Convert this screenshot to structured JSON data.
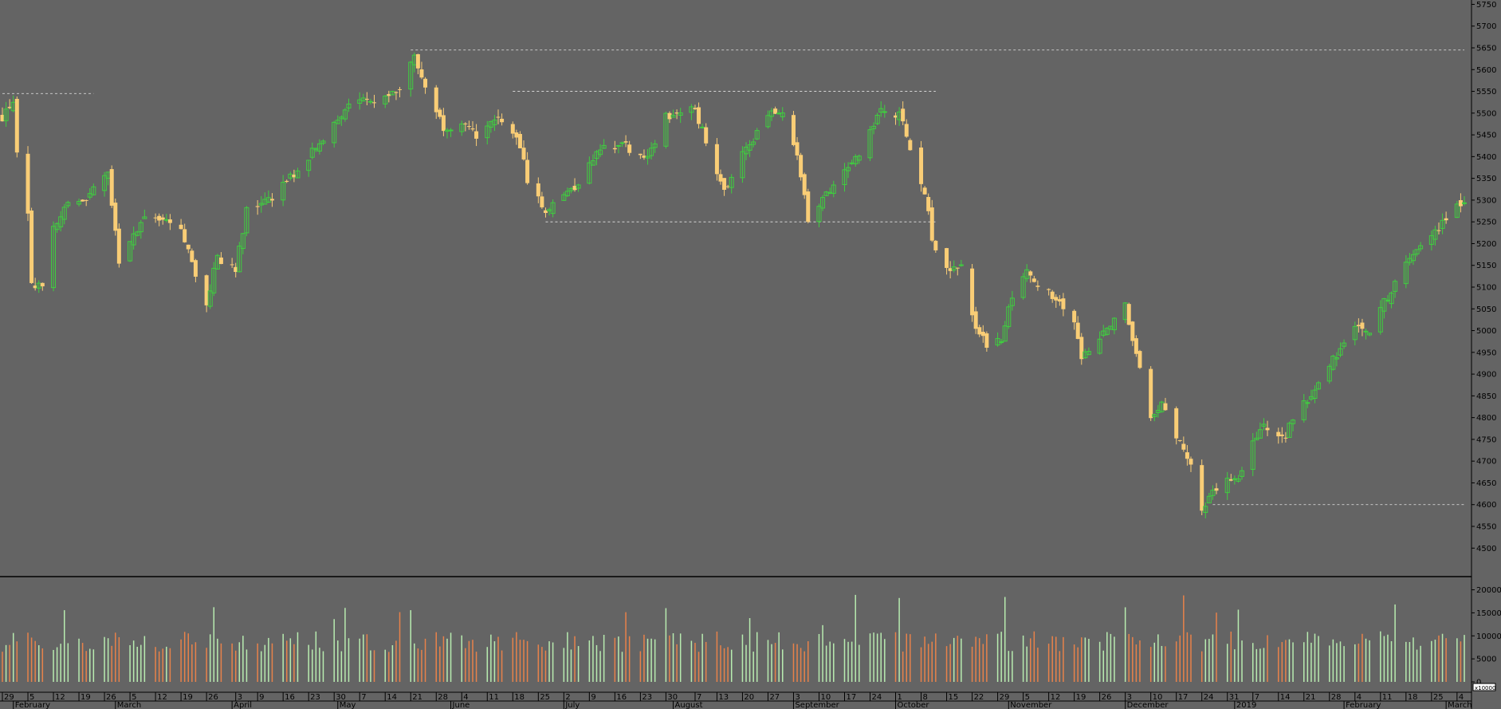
{
  "chart_data": {
    "type": "candlestick",
    "title": "",
    "xlabel": "",
    "ylabel": "",
    "price_ylim": [
      4440,
      5760
    ],
    "price_ticks": [
      4500,
      4550,
      4600,
      4650,
      4700,
      4750,
      4800,
      4850,
      4900,
      4950,
      5000,
      5050,
      5100,
      5150,
      5200,
      5250,
      5300,
      5350,
      5400,
      5450,
      5500,
      5550,
      5600,
      5650,
      5700,
      5750
    ],
    "volume_ylim": [
      0,
      22000
    ],
    "volume_ticks": [
      0,
      5000,
      10000,
      15000,
      20000
    ],
    "volume_corner_label": "x10000",
    "colors": {
      "up": "#3fcf3f",
      "down": "#f9cd76",
      "vol_up": "#b8ecb0",
      "vol_down": "#e8824a",
      "background": "#646464",
      "resistance": "#e6e6e6"
    },
    "month_labels": [
      {
        "label": "February",
        "date": "2018-02-01"
      },
      {
        "label": "March",
        "date": "2018-03-01"
      },
      {
        "label": "April",
        "date": "2018-04-02"
      },
      {
        "label": "May",
        "date": "2018-05-01"
      },
      {
        "label": "June",
        "date": "2018-06-01"
      },
      {
        "label": "July",
        "date": "2018-07-02"
      },
      {
        "label": "August",
        "date": "2018-08-01"
      },
      {
        "label": "September",
        "date": "2018-09-03"
      },
      {
        "label": "October",
        "date": "2018-10-01"
      },
      {
        "label": "November",
        "date": "2018-11-01"
      },
      {
        "label": "December",
        "date": "2018-12-03"
      },
      {
        "label": "2019",
        "date": "2019-01-02"
      },
      {
        "label": "February",
        "date": "2019-02-01"
      },
      {
        "label": "March",
        "date": "2019-03-01"
      }
    ],
    "day_labels": [
      {
        "label": "29",
        "date": "2018-01-29"
      },
      {
        "label": "5",
        "date": "2018-02-05"
      },
      {
        "label": "12",
        "date": "2018-02-12"
      },
      {
        "label": "19",
        "date": "2018-02-19"
      },
      {
        "label": "26",
        "date": "2018-02-26"
      },
      {
        "label": "5",
        "date": "2018-03-05"
      },
      {
        "label": "12",
        "date": "2018-03-12"
      },
      {
        "label": "19",
        "date": "2018-03-19"
      },
      {
        "label": "26",
        "date": "2018-03-26"
      },
      {
        "label": "3",
        "date": "2018-04-03"
      },
      {
        "label": "9",
        "date": "2018-04-09"
      },
      {
        "label": "16",
        "date": "2018-04-16"
      },
      {
        "label": "23",
        "date": "2018-04-23"
      },
      {
        "label": "30",
        "date": "2018-04-30"
      },
      {
        "label": "7",
        "date": "2018-05-07"
      },
      {
        "label": "14",
        "date": "2018-05-14"
      },
      {
        "label": "21",
        "date": "2018-05-21"
      },
      {
        "label": "28",
        "date": "2018-05-28"
      },
      {
        "label": "4",
        "date": "2018-06-04"
      },
      {
        "label": "11",
        "date": "2018-06-11"
      },
      {
        "label": "18",
        "date": "2018-06-18"
      },
      {
        "label": "25",
        "date": "2018-06-25"
      },
      {
        "label": "2",
        "date": "2018-07-02"
      },
      {
        "label": "9",
        "date": "2018-07-09"
      },
      {
        "label": "16",
        "date": "2018-07-16"
      },
      {
        "label": "23",
        "date": "2018-07-23"
      },
      {
        "label": "30",
        "date": "2018-07-30"
      },
      {
        "label": "7",
        "date": "2018-08-07"
      },
      {
        "label": "13",
        "date": "2018-08-13"
      },
      {
        "label": "20",
        "date": "2018-08-20"
      },
      {
        "label": "27",
        "date": "2018-08-27"
      },
      {
        "label": "3",
        "date": "2018-09-03"
      },
      {
        "label": "10",
        "date": "2018-09-10"
      },
      {
        "label": "17",
        "date": "2018-09-17"
      },
      {
        "label": "24",
        "date": "2018-09-24"
      },
      {
        "label": "1",
        "date": "2018-10-01"
      },
      {
        "label": "8",
        "date": "2018-10-08"
      },
      {
        "label": "15",
        "date": "2018-10-15"
      },
      {
        "label": "22",
        "date": "2018-10-22"
      },
      {
        "label": "29",
        "date": "2018-10-29"
      },
      {
        "label": "5",
        "date": "2018-11-05"
      },
      {
        "label": "12",
        "date": "2018-11-12"
      },
      {
        "label": "19",
        "date": "2018-11-19"
      },
      {
        "label": "26",
        "date": "2018-11-26"
      },
      {
        "label": "3",
        "date": "2018-12-03"
      },
      {
        "label": "10",
        "date": "2018-12-10"
      },
      {
        "label": "17",
        "date": "2018-12-17"
      },
      {
        "label": "24",
        "date": "2018-12-24"
      },
      {
        "label": "31",
        "date": "2018-12-31"
      },
      {
        "label": "7",
        "date": "2019-01-07"
      },
      {
        "label": "14",
        "date": "2019-01-14"
      },
      {
        "label": "21",
        "date": "2019-01-21"
      },
      {
        "label": "28",
        "date": "2019-01-28"
      },
      {
        "label": "4",
        "date": "2019-02-04"
      },
      {
        "label": "11",
        "date": "2019-02-11"
      },
      {
        "label": "18",
        "date": "2019-02-18"
      },
      {
        "label": "25",
        "date": "2019-02-25"
      },
      {
        "label": "4",
        "date": "2019-03-04"
      }
    ],
    "x_range": [
      "2018-01-29",
      "2019-03-06"
    ],
    "resistance_lines": [
      {
        "level": 5545,
        "from": "2018-01-29",
        "to": "2018-02-23"
      },
      {
        "level": 5645,
        "from": "2018-05-21",
        "to": "2019-03-06"
      },
      {
        "level": 5550,
        "from": "2018-06-18",
        "to": "2018-10-12"
      },
      {
        "level": 5250,
        "from": "2018-06-27",
        "to": "2018-10-12"
      },
      {
        "level": 4600,
        "from": "2018-12-27",
        "to": "2019-03-06"
      }
    ],
    "anchors": [
      [
        "2018-01-29",
        5490
      ],
      [
        "2018-02-01",
        5530
      ],
      [
        "2018-02-02",
        5400
      ],
      [
        "2018-02-05",
        5260
      ],
      [
        "2018-02-06",
        5100
      ],
      [
        "2018-02-09",
        5110
      ],
      [
        "2018-02-12",
        5230
      ],
      [
        "2018-02-16",
        5290
      ],
      [
        "2018-02-21",
        5300
      ],
      [
        "2018-02-27",
        5360
      ],
      [
        "2018-03-02",
        5160
      ],
      [
        "2018-03-05",
        5200
      ],
      [
        "2018-03-09",
        5270
      ],
      [
        "2018-03-13",
        5250
      ],
      [
        "2018-03-19",
        5240
      ],
      [
        "2018-03-23",
        5120
      ],
      [
        "2018-03-26",
        5060
      ],
      [
        "2018-03-29",
        5170
      ],
      [
        "2018-04-03",
        5140
      ],
      [
        "2018-04-06",
        5280
      ],
      [
        "2018-04-12",
        5300
      ],
      [
        "2018-04-19",
        5360
      ],
      [
        "2018-04-27",
        5440
      ],
      [
        "2018-05-03",
        5510
      ],
      [
        "2018-05-10",
        5530
      ],
      [
        "2018-05-18",
        5560
      ],
      [
        "2018-05-22",
        5630
      ],
      [
        "2018-05-25",
        5560
      ],
      [
        "2018-05-30",
        5470
      ],
      [
        "2018-06-04",
        5470
      ],
      [
        "2018-06-08",
        5450
      ],
      [
        "2018-06-14",
        5480
      ],
      [
        "2018-06-19",
        5450
      ],
      [
        "2018-06-22",
        5350
      ],
      [
        "2018-06-27",
        5270
      ],
      [
        "2018-06-29",
        5300
      ],
      [
        "2018-07-05",
        5330
      ],
      [
        "2018-07-12",
        5420
      ],
      [
        "2018-07-18",
        5430
      ],
      [
        "2018-07-24",
        5390
      ],
      [
        "2018-07-30",
        5490
      ],
      [
        "2018-08-06",
        5520
      ],
      [
        "2018-08-10",
        5440
      ],
      [
        "2018-08-15",
        5320
      ],
      [
        "2018-08-21",
        5420
      ],
      [
        "2018-08-28",
        5500
      ],
      [
        "2018-08-31",
        5490
      ],
      [
        "2018-09-04",
        5400
      ],
      [
        "2018-09-07",
        5260
      ],
      [
        "2018-09-12",
        5310
      ],
      [
        "2018-09-20",
        5390
      ],
      [
        "2018-09-27",
        5500
      ],
      [
        "2018-10-02",
        5500
      ],
      [
        "2018-10-05",
        5420
      ],
      [
        "2018-10-10",
        5280
      ],
      [
        "2018-10-11",
        5200
      ],
      [
        "2018-10-16",
        5140
      ],
      [
        "2018-10-19",
        5150
      ],
      [
        "2018-10-23",
        5000
      ],
      [
        "2018-10-26",
        4970
      ],
      [
        "2018-10-30",
        4980
      ],
      [
        "2018-11-02",
        5080
      ],
      [
        "2018-11-06",
        5130
      ],
      [
        "2018-11-09",
        5090
      ],
      [
        "2018-11-14",
        5080
      ],
      [
        "2018-11-19",
        5020
      ],
      [
        "2018-11-21",
        4940
      ],
      [
        "2018-11-27",
        4990
      ],
      [
        "2018-12-03",
        5060
      ],
      [
        "2018-12-06",
        4950
      ],
      [
        "2018-12-10",
        4790
      ],
      [
        "2018-12-13",
        4830
      ],
      [
        "2018-12-18",
        4740
      ],
      [
        "2018-12-21",
        4700
      ],
      [
        "2018-12-24",
        4590
      ],
      [
        "2018-12-27",
        4640
      ],
      [
        "2019-01-03",
        4660
      ],
      [
        "2019-01-09",
        4780
      ],
      [
        "2019-01-15",
        4750
      ],
      [
        "2019-01-21",
        4830
      ],
      [
        "2019-01-25",
        4880
      ],
      [
        "2019-01-31",
        4960
      ],
      [
        "2019-02-05",
        5020
      ],
      [
        "2019-02-08",
        5000
      ],
      [
        "2019-02-13",
        5080
      ],
      [
        "2019-02-18",
        5160
      ],
      [
        "2019-02-25",
        5220
      ],
      [
        "2019-03-04",
        5290
      ],
      [
        "2019-03-06",
        5300
      ]
    ]
  }
}
